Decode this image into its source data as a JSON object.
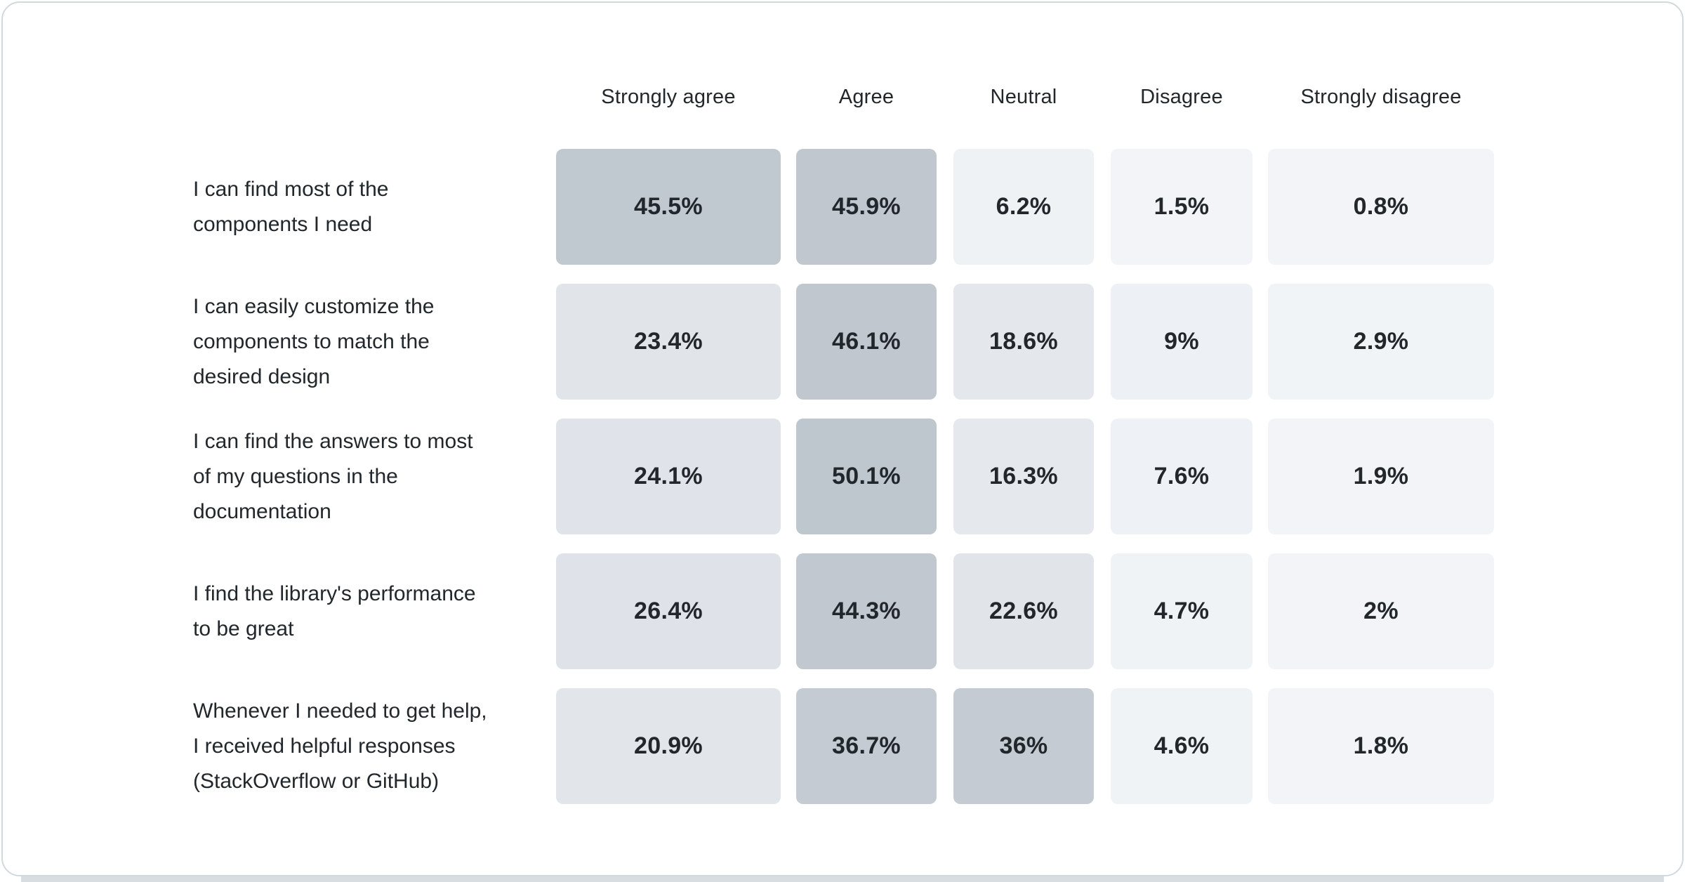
{
  "chart_data": {
    "type": "heatmap",
    "title": "",
    "columns": [
      "Strongly agree",
      "Agree",
      "Neutral",
      "Disagree",
      "Strongly disagree"
    ],
    "rows": [
      {
        "label": "I can find most of the\ncomponents I need",
        "values": [
          45.5,
          45.9,
          6.2,
          1.5,
          0.8
        ],
        "labels": [
          "45.5%",
          "45.9%",
          "6.2%",
          "1.5%",
          "0.8%"
        ]
      },
      {
        "label": "I can easily customize the\ncomponents to match the\ndesired design",
        "values": [
          23.4,
          46.1,
          18.6,
          9,
          2.9
        ],
        "labels": [
          "23.4%",
          "46.1%",
          "18.6%",
          "9%",
          "2.9%"
        ]
      },
      {
        "label": "I can find the answers to most\nof my questions in the\ndocumentation",
        "values": [
          24.1,
          50.1,
          16.3,
          7.6,
          1.9
        ],
        "labels": [
          "24.1%",
          "50.1%",
          "16.3%",
          "7.6%",
          "1.9%"
        ]
      },
      {
        "label": "I find the library's performance\nto be great",
        "values": [
          26.4,
          44.3,
          22.6,
          4.7,
          2
        ],
        "labels": [
          "26.4%",
          "44.3%",
          "22.6%",
          "4.7%",
          "2%"
        ]
      },
      {
        "label": "Whenever I needed to get help,\nI received helpful responses\n(StackOverflow or GitHub)",
        "values": [
          20.9,
          36.7,
          36,
          4.6,
          1.8
        ],
        "labels": [
          "20.9%",
          "36.7%",
          "36%",
          "4.6%",
          "1.8%"
        ]
      }
    ],
    "value_range": [
      0,
      50.1
    ],
    "legend_position": "none",
    "colors": {
      "text": "#21272a",
      "card_background": "#ffffff",
      "card_border": "#d2d9de",
      "bottom_strip": "#d8dde2",
      "scale_stops": [
        [
          0,
          "#f3f5f8"
        ],
        [
          1.5,
          "#f2f4f7"
        ],
        [
          5,
          "#f0f3f6"
        ],
        [
          9,
          "#edf0f4"
        ],
        [
          16.3,
          "#e5e9ed"
        ],
        [
          20.9,
          "#e2e6eb"
        ],
        [
          26.4,
          "#dfe3e9"
        ],
        [
          36,
          "#c4cbd3"
        ],
        [
          44.3,
          "#c1c8d0"
        ],
        [
          50.1,
          "#bec6ce"
        ]
      ]
    }
  }
}
